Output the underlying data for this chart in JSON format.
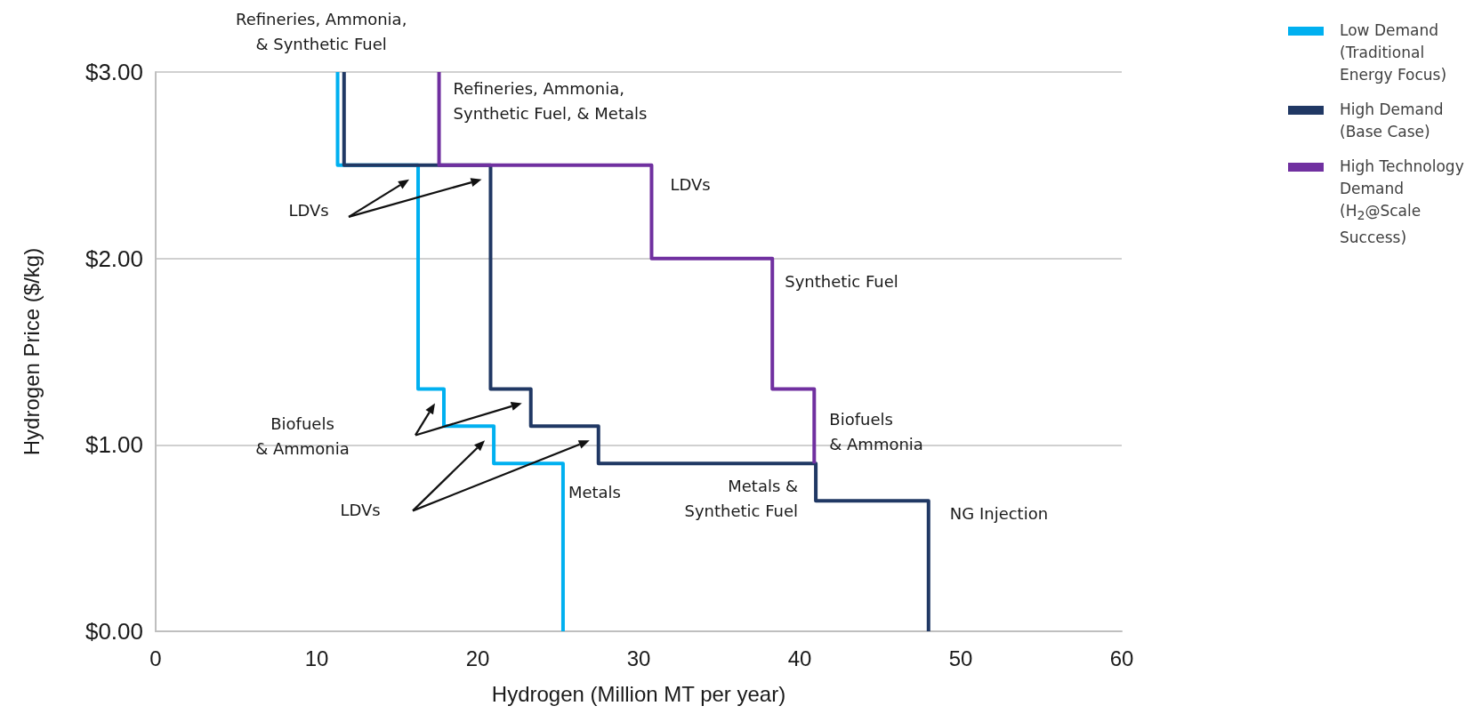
{
  "chart_data": {
    "type": "line",
    "xlabel": "Hydrogen (Million MT per year)",
    "ylabel": "Hydrogen Price ($/kg)",
    "xlim": [
      0,
      60
    ],
    "xticks": [
      0,
      10,
      20,
      30,
      40,
      50,
      60
    ],
    "ylim": [
      0,
      3
    ],
    "yticks": [
      {
        "value": 0,
        "label": "$0.00"
      },
      {
        "value": 1,
        "label": "$1.00"
      },
      {
        "value": 2,
        "label": "$2.00"
      },
      {
        "value": 3,
        "label": "$3.00"
      }
    ],
    "grid": "y",
    "legend": "top right",
    "marker": "none",
    "line_style": "solid",
    "series": [
      {
        "name": "Low Demand (Traditional Energy Focus)",
        "color": "#00b0f0",
        "x": [
          11.3,
          11.3,
          16.3,
          16.3,
          17.9,
          17.9,
          21.0,
          21.0,
          25.3,
          25.3
        ],
        "values": [
          3,
          2.5,
          2.5,
          1.3,
          1.3,
          1.1,
          1.1,
          0.9,
          0.9,
          0
        ]
      },
      {
        "name": "High Demand (Base Case)",
        "color": "#203864",
        "x": [
          11.7,
          11.7,
          20.8,
          20.8,
          23.3,
          23.3,
          27.5,
          27.5,
          41.0,
          41.0,
          48.0,
          48.0
        ],
        "values": [
          3,
          2.5,
          2.5,
          1.3,
          1.3,
          1.1,
          1.1,
          0.9,
          0.9,
          0.7,
          0.7,
          0
        ]
      },
      {
        "name": "High Technology Demand (H$_{2}$@Scale Success)",
        "color": "#7030a0",
        "x": [
          17.6,
          17.6,
          30.8,
          30.8,
          38.3,
          38.3,
          40.9,
          40.9
        ],
        "values": [
          3,
          2.5,
          2.5,
          2.0,
          2.0,
          1.3,
          1.3,
          0.9
        ]
      }
    ],
    "annotations": [
      {
        "text": "Refineries, Ammonia,\n& Synthetic Fuel",
        "x": 11.5,
        "y": 3
      },
      {
        "text": "Refineries, Ammonia,\nSynthetic Fuel, & Metals",
        "x": 17.6,
        "y": 3
      },
      "LDVs",
      {
        "text": "LDVs",
        "x": 30.8,
        "y": 2.5
      },
      {
        "text": "Synthetic Fuel",
        "x": 38.3,
        "y": 2.0
      },
      "Biofuels\n& Ammonia",
      {
        "text": "Biofuels\n& Ammonia",
        "x": 40.9,
        "y": 1.3
      },
      "LDVs",
      {
        "text": "Metals",
        "x": 25.3,
        "y": 0.9
      },
      {
        "text": "Metals &\nSynthetic Fuel",
        "x": 41.0,
        "y": 0.9
      },
      {
        "text": "NG Injection",
        "x": 48.0,
        "y": 0.7
      }
    ]
  }
}
